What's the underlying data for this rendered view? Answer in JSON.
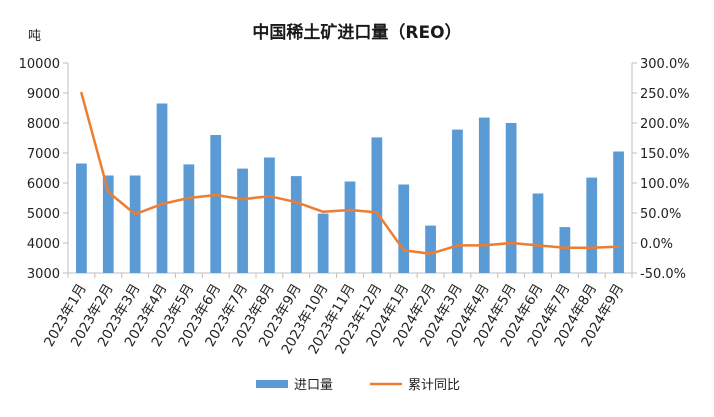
{
  "chart_data": {
    "type": "bar",
    "title": "中国稀土矿进口量（REO）",
    "left_unit": "吨",
    "categories": [
      "2023年1月",
      "2023年2月",
      "2023年3月",
      "2023年4月",
      "2023年5月",
      "2023年6月",
      "2023年7月",
      "2023年8月",
      "2023年9月",
      "2023年10月",
      "2023年11月",
      "2023年12月",
      "2024年1月",
      "2024年2月",
      "2024年3月",
      "2024年4月",
      "2024年5月",
      "2024年6月",
      "2024年7月",
      "2024年8月",
      "2024年9月"
    ],
    "series": [
      {
        "name": "进口量",
        "type": "bar",
        "axis": "left",
        "color": "#5B9BD5",
        "values": [
          6650,
          6250,
          6250,
          8650,
          6620,
          7600,
          6480,
          6850,
          6230,
          4980,
          6050,
          7520,
          5950,
          4580,
          7780,
          8180,
          8000,
          5650,
          4530,
          6180,
          7050
        ]
      },
      {
        "name": "累计同比",
        "type": "line",
        "axis": "right",
        "color": "#ED7D31",
        "values": [
          250.0,
          85.0,
          48.0,
          65.0,
          75.0,
          80.0,
          73.0,
          78.0,
          68.0,
          52.0,
          55.0,
          51.0,
          -12.0,
          -18.0,
          -4.0,
          -4.0,
          0.0,
          -4.0,
          -8.0,
          -8.0,
          -6.0
        ]
      }
    ],
    "y_left": {
      "min": 3000,
      "max": 10000,
      "step": 1000,
      "ticks": [
        "3000",
        "4000",
        "5000",
        "6000",
        "7000",
        "8000",
        "9000",
        "10000"
      ]
    },
    "y_right": {
      "min": -50,
      "max": 300,
      "step": 50,
      "ticks": [
        "-50.0%",
        "0.0%",
        "50.0%",
        "100.0%",
        "150.0%",
        "200.0%",
        "250.0%",
        "300.0%"
      ]
    },
    "grid": false,
    "legend_position": "bottom"
  }
}
